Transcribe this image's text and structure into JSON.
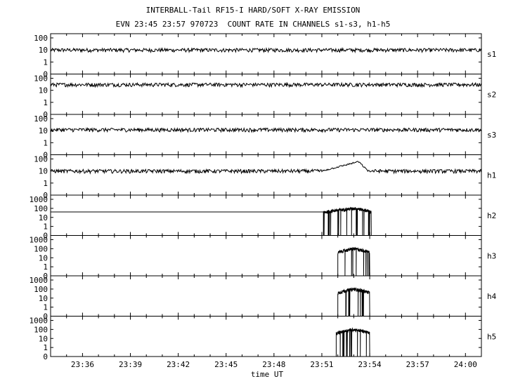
{
  "chart_data": {
    "type": "line",
    "title": "INTERBALL-Tail RF15-I HARD/SOFT X-RAY EMISSION",
    "subtitle": "EVN 23:45 23:57 970723  COUNT RATE IN CHANNELS s1-s3, h1-h5",
    "xlabel": "time UT",
    "x_ticks": [
      "23:36",
      "23:39",
      "23:42",
      "23:45",
      "23:48",
      "23:51",
      "23:54",
      "23:57",
      "24:00"
    ],
    "xlim_minutes": [
      0,
      27
    ],
    "x_tick_minutes": [
      2,
      5,
      8,
      11,
      14,
      17,
      20,
      23,
      26
    ],
    "y_scale": "log",
    "panels": [
      {
        "name": "s1",
        "yticks": [
          "100",
          "10",
          "1",
          "0"
        ],
        "baseline": 10,
        "events": []
      },
      {
        "name": "s2",
        "yticks": [
          "100",
          "10",
          "1",
          "0"
        ],
        "baseline": 30,
        "events": []
      },
      {
        "name": "s3",
        "yticks": [
          "100",
          "10",
          "1",
          "0"
        ],
        "baseline": 12,
        "events": []
      },
      {
        "name": "h1",
        "yticks": [
          "100",
          "10",
          "1",
          "0"
        ],
        "baseline": 10,
        "events": [
          {
            "start": 17.0,
            "peak": 19.3,
            "end": 19.9,
            "peak_value": 60
          }
        ]
      },
      {
        "name": "h2",
        "yticks": [
          "1000",
          "100",
          "10",
          "1",
          "0"
        ],
        "baseline": null,
        "fill_line": 40,
        "events": [
          {
            "start": 17.1,
            "peak": 19.1,
            "end": 20.1,
            "peak_value": 100
          }
        ]
      },
      {
        "name": "h3",
        "yticks": [
          "1000",
          "100",
          "10",
          "1",
          "0"
        ],
        "baseline": null,
        "events": [
          {
            "start": 18.0,
            "peak": 19.0,
            "end": 20.0,
            "peak_value": 100
          }
        ]
      },
      {
        "name": "h4",
        "yticks": [
          "1000",
          "100",
          "10",
          "1",
          "0"
        ],
        "baseline": null,
        "events": [
          {
            "start": 18.0,
            "peak": 19.0,
            "end": 20.0,
            "peak_value": 100
          }
        ]
      },
      {
        "name": "h5",
        "yticks": [
          "1000",
          "100",
          "10",
          "1",
          "0"
        ],
        "baseline": null,
        "events": [
          {
            "start": 17.9,
            "peak": 19.0,
            "end": 20.0,
            "peak_value": 100
          }
        ]
      }
    ]
  }
}
